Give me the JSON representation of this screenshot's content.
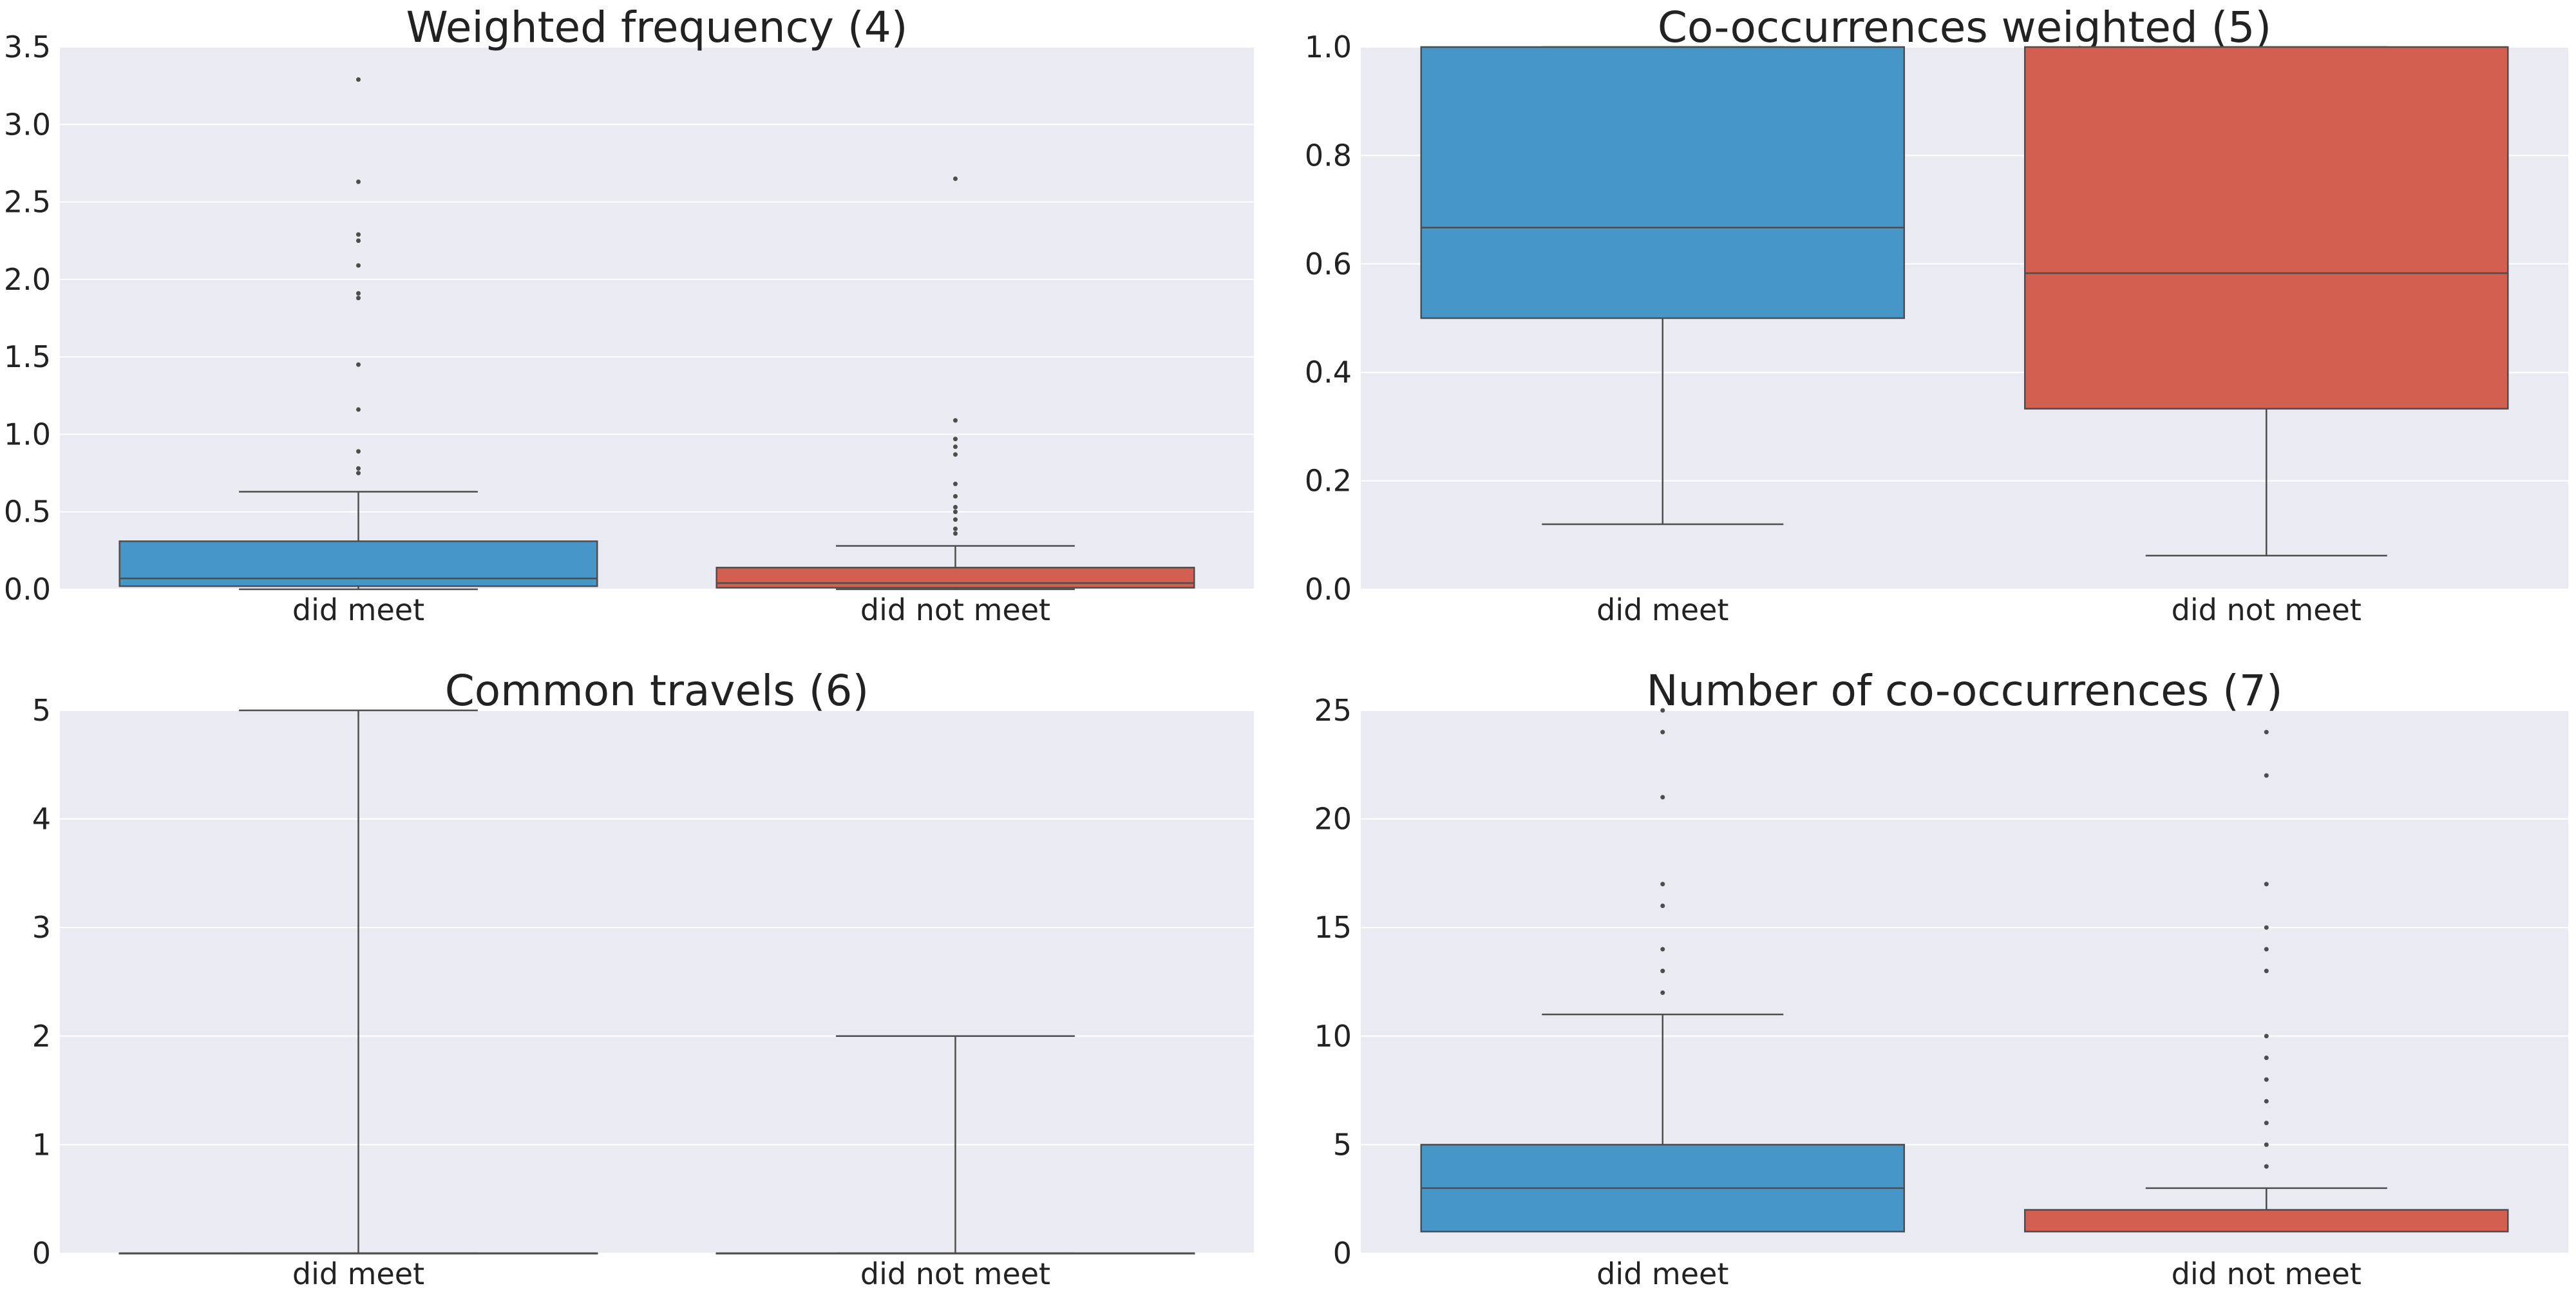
{
  "colors": {
    "did_meet": "#4796c8",
    "did_not_meet": "#d35f51",
    "background": "#eaeaf2",
    "grid": "#ffffff",
    "lines": "#4d4d4d"
  },
  "chart_data": [
    {
      "type": "box",
      "title": "Weighted frequency (4)",
      "categories": [
        "did meet",
        "did not meet"
      ],
      "ylim": [
        0,
        3.5
      ],
      "yticks": [
        "0.0",
        "0.5",
        "1.0",
        "1.5",
        "2.0",
        "2.5",
        "3.0",
        "3.5"
      ],
      "grid": true,
      "boxes": [
        {
          "category": "did meet",
          "min": 0.0,
          "q1": 0.02,
          "median": 0.07,
          "q3": 0.31,
          "max": 0.63,
          "outliers": [
            0.75,
            0.78,
            0.89,
            1.16,
            1.45,
            1.88,
            1.91,
            2.09,
            2.25,
            2.29,
            2.63,
            3.29
          ]
        },
        {
          "category": "did not meet",
          "min": 0.0,
          "q1": 0.01,
          "median": 0.04,
          "q3": 0.14,
          "max": 0.28,
          "outliers": [
            0.36,
            0.39,
            0.45,
            0.5,
            0.53,
            0.6,
            0.68,
            0.87,
            0.92,
            0.97,
            1.09,
            2.65
          ]
        }
      ]
    },
    {
      "type": "box",
      "title": "Co-occurrences weighted (5)",
      "categories": [
        "did meet",
        "did not meet"
      ],
      "ylim": [
        0,
        1.0
      ],
      "yticks": [
        "0.0",
        "0.2",
        "0.4",
        "0.6",
        "0.8",
        "1.0"
      ],
      "grid": true,
      "boxes": [
        {
          "category": "did meet",
          "min": 0.12,
          "q1": 0.5,
          "median": 0.667,
          "q3": 1.0,
          "max": 1.0,
          "outliers": []
        },
        {
          "category": "did not meet",
          "min": 0.062,
          "q1": 0.333,
          "median": 0.583,
          "q3": 1.0,
          "max": 1.0,
          "outliers": []
        }
      ]
    },
    {
      "type": "box",
      "title": "Common travels (6)",
      "categories": [
        "did meet",
        "did not meet"
      ],
      "ylim": [
        0,
        5
      ],
      "yticks": [
        "0",
        "1",
        "2",
        "3",
        "4",
        "5"
      ],
      "grid": true,
      "boxes": [
        {
          "category": "did meet",
          "min": 0,
          "q1": 0,
          "median": 0,
          "q3": 0,
          "max": 5,
          "outliers": []
        },
        {
          "category": "did not meet",
          "min": 0,
          "q1": 0,
          "median": 0,
          "q3": 0,
          "max": 2,
          "outliers": []
        }
      ]
    },
    {
      "type": "box",
      "title": "Number of co-occurrences (7)",
      "categories": [
        "did meet",
        "did not meet"
      ],
      "ylim": [
        0,
        25
      ],
      "yticks": [
        "0",
        "5",
        "10",
        "15",
        "20",
        "25"
      ],
      "grid": true,
      "boxes": [
        {
          "category": "did meet",
          "min": 1,
          "q1": 1,
          "median": 3,
          "q3": 5,
          "max": 11,
          "outliers": [
            12,
            13,
            14,
            16,
            17,
            21,
            24,
            25
          ]
        },
        {
          "category": "did not meet",
          "min": 1,
          "q1": 1,
          "median": 1,
          "q3": 2,
          "max": 3,
          "outliers": [
            4,
            5,
            6,
            7,
            8,
            9,
            10,
            13,
            14,
            15,
            17,
            22,
            24
          ]
        }
      ]
    }
  ]
}
